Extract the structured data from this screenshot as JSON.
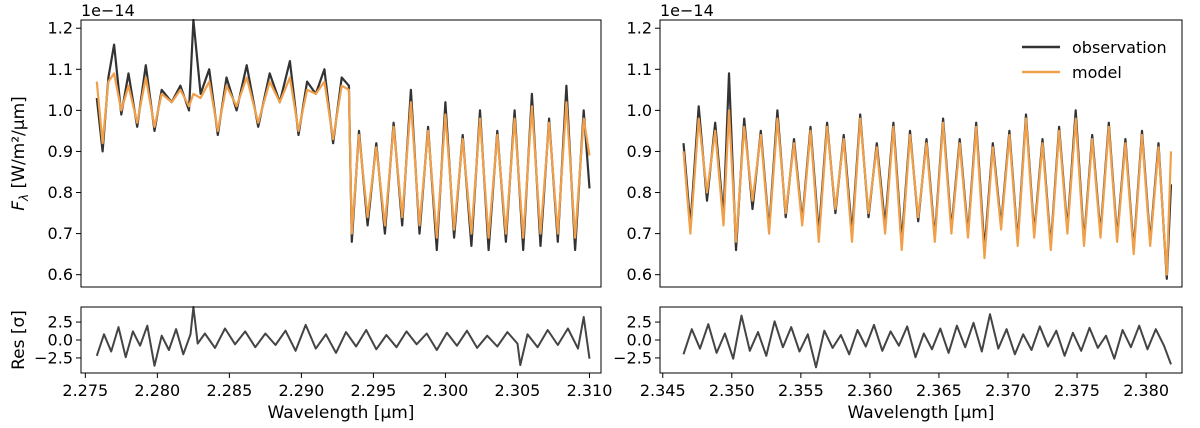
{
  "chart_data": [
    {
      "type": "line",
      "panel": "left-spectrum",
      "offset_text": "1e−14",
      "ylabel_main": "F",
      "ylabel_sub": "λ",
      "ylabel_unit": " [W/m²/μm]",
      "xlim": [
        2.2747,
        2.3108
      ],
      "ylim": [
        0.57,
        1.22
      ],
      "yticks": [
        "0.6",
        "0.7",
        "0.8",
        "0.9",
        "1.0",
        "1.1",
        "1.2"
      ],
      "ytick_values": [
        0.6,
        0.7,
        0.8,
        0.9,
        1.0,
        1.1,
        1.2
      ],
      "series": [
        {
          "role": "observation",
          "color": "#333333",
          "x": [
            2.2758,
            2.2762,
            2.2766,
            2.277,
            2.2775,
            2.278,
            2.2786,
            2.2792,
            2.2798,
            2.2803,
            2.281,
            2.2816,
            2.2822,
            2.2825,
            2.283,
            2.2836,
            2.2842,
            2.2848,
            2.2855,
            2.2862,
            2.287,
            2.2878,
            2.2885,
            2.2892,
            2.2898,
            2.2904,
            2.291,
            2.2916,
            2.2922,
            2.2928,
            2.2933,
            2.2935,
            2.294,
            2.2946,
            2.2952,
            2.2958,
            2.2964,
            2.297,
            2.2976,
            2.2982,
            2.2988,
            2.2994,
            2.3,
            2.3006,
            2.3012,
            2.3018,
            2.3024,
            2.303,
            2.3036,
            2.3042,
            2.3048,
            2.3054,
            2.306,
            2.3066,
            2.3072,
            2.3078,
            2.3084,
            2.309,
            2.3096,
            2.31
          ],
          "y": [
            1.03,
            0.9,
            1.08,
            1.16,
            0.99,
            1.09,
            0.96,
            1.11,
            0.95,
            1.05,
            1.02,
            1.06,
            1.0,
            1.25,
            1.04,
            1.1,
            0.94,
            1.08,
            1.0,
            1.11,
            0.96,
            1.09,
            1.02,
            1.12,
            0.94,
            1.07,
            1.04,
            1.1,
            0.92,
            1.08,
            1.06,
            0.68,
            0.95,
            0.72,
            0.92,
            0.7,
            0.97,
            0.72,
            1.05,
            0.7,
            0.96,
            0.66,
            1.02,
            0.69,
            0.94,
            0.67,
            1.0,
            0.66,
            0.95,
            0.68,
            1.0,
            0.66,
            1.04,
            0.67,
            0.98,
            0.68,
            1.06,
            0.66,
            1.0,
            0.81
          ]
        },
        {
          "role": "model",
          "color": "#f0a04b",
          "x": [
            2.2758,
            2.2762,
            2.2766,
            2.277,
            2.2775,
            2.278,
            2.2786,
            2.2792,
            2.2798,
            2.2803,
            2.281,
            2.2816,
            2.2822,
            2.2825,
            2.283,
            2.2836,
            2.2842,
            2.2848,
            2.2855,
            2.2862,
            2.287,
            2.2878,
            2.2885,
            2.2892,
            2.2898,
            2.2904,
            2.291,
            2.2916,
            2.2922,
            2.2928,
            2.2933,
            2.2935,
            2.294,
            2.2946,
            2.2952,
            2.2958,
            2.2964,
            2.297,
            2.2976,
            2.2982,
            2.2988,
            2.2994,
            2.3,
            2.3006,
            2.3012,
            2.3018,
            2.3024,
            2.303,
            2.3036,
            2.3042,
            2.3048,
            2.3054,
            2.306,
            2.3066,
            2.3072,
            2.3078,
            2.3084,
            2.309,
            2.3096,
            2.31
          ],
          "y": [
            1.07,
            0.92,
            1.07,
            1.09,
            1.0,
            1.06,
            0.97,
            1.08,
            0.96,
            1.04,
            1.02,
            1.05,
            1.01,
            1.04,
            1.03,
            1.07,
            0.95,
            1.06,
            1.01,
            1.08,
            0.97,
            1.07,
            1.02,
            1.08,
            0.95,
            1.05,
            1.04,
            1.07,
            0.93,
            1.06,
            1.05,
            0.7,
            0.94,
            0.74,
            0.91,
            0.72,
            0.96,
            0.74,
            1.02,
            0.72,
            0.95,
            0.69,
            0.99,
            0.71,
            0.93,
            0.7,
            0.98,
            0.69,
            0.94,
            0.7,
            0.98,
            0.69,
            1.01,
            0.7,
            0.97,
            0.7,
            1.02,
            0.69,
            0.98,
            0.89
          ]
        }
      ]
    },
    {
      "type": "line",
      "panel": "left-residual",
      "ylabel": "Res [σ]",
      "xlabel": "Wavelength [μm]",
      "xlim": [
        2.2747,
        2.3108
      ],
      "ylim": [
        -4.6,
        4.6
      ],
      "yticks": [
        "−2.5",
        "0.0",
        "2.5"
      ],
      "ytick_values": [
        -2.5,
        0.0,
        2.5
      ],
      "xticks": [
        "2.275",
        "2.280",
        "2.285",
        "2.290",
        "2.295",
        "2.300",
        "2.305",
        "2.310"
      ],
      "xtick_values": [
        2.275,
        2.28,
        2.285,
        2.29,
        2.295,
        2.3,
        2.305,
        2.31
      ],
      "series": [
        {
          "role": "residual",
          "color": "#444444",
          "x": [
            2.2758,
            2.2763,
            2.2768,
            2.2773,
            2.2778,
            2.2783,
            2.2788,
            2.2793,
            2.2798,
            2.2803,
            2.2808,
            2.2813,
            2.2818,
            2.2823,
            2.2825,
            2.2828,
            2.2833,
            2.284,
            2.2847,
            2.2854,
            2.2861,
            2.2868,
            2.2875,
            2.2882,
            2.2889,
            2.2896,
            2.2903,
            2.291,
            2.2917,
            2.2924,
            2.2931,
            2.2938,
            2.2945,
            2.2952,
            2.2959,
            2.2966,
            2.2973,
            2.298,
            2.2987,
            2.2994,
            2.3001,
            2.3008,
            2.3015,
            2.3022,
            2.3029,
            2.3036,
            2.3043,
            2.305,
            2.3052,
            2.3057,
            2.3064,
            2.3071,
            2.3078,
            2.3085,
            2.3092,
            2.3096,
            2.31
          ],
          "y": [
            -2.2,
            0.8,
            -1.6,
            1.8,
            -2.4,
            1.2,
            -0.8,
            2.0,
            -3.6,
            0.6,
            -1.4,
            1.5,
            -2.0,
            0.8,
            6.5,
            -0.5,
            0.9,
            -1.1,
            1.6,
            -0.6,
            1.2,
            -1.0,
            0.9,
            -0.7,
            1.3,
            -1.5,
            2.1,
            -1.2,
            0.8,
            -1.8,
            1.1,
            -0.9,
            1.4,
            -1.3,
            0.7,
            -1.0,
            1.2,
            -0.6,
            0.9,
            -1.4,
            1.0,
            -0.8,
            1.3,
            -1.1,
            0.6,
            -0.9,
            1.1,
            -0.5,
            -3.5,
            0.8,
            -1.0,
            1.4,
            -0.7,
            1.6,
            -1.2,
            3.2,
            -2.6
          ]
        }
      ]
    },
    {
      "type": "line",
      "panel": "right-spectrum",
      "offset_text": "1e−14",
      "xlim": [
        2.3448,
        2.3826
      ],
      "ylim": [
        0.57,
        1.22
      ],
      "yticks": [
        "0.6",
        "0.7",
        "0.8",
        "0.9",
        "1.0",
        "1.1",
        "1.2"
      ],
      "ytick_values": [
        0.6,
        0.7,
        0.8,
        0.9,
        1.0,
        1.1,
        1.2
      ],
      "legend": {
        "placement": "upper-right",
        "entries": [
          "observation",
          "model"
        ]
      },
      "series": [
        {
          "name": "observation",
          "color": "#333333",
          "x": [
            2.3465,
            2.347,
            2.3476,
            2.3482,
            2.3488,
            2.3494,
            2.3498,
            2.3503,
            2.3509,
            2.3515,
            2.3521,
            2.3527,
            2.3533,
            2.3539,
            2.3545,
            2.3551,
            2.3557,
            2.3563,
            2.3569,
            2.3575,
            2.3581,
            2.3587,
            2.3593,
            2.3599,
            2.3605,
            2.3611,
            2.3617,
            2.3623,
            2.3629,
            2.3635,
            2.3641,
            2.3647,
            2.3653,
            2.3659,
            2.3665,
            2.3671,
            2.3677,
            2.3683,
            2.3689,
            2.3695,
            2.3701,
            2.3707,
            2.3713,
            2.3719,
            2.3725,
            2.3731,
            2.3737,
            2.3743,
            2.3749,
            2.3755,
            2.3761,
            2.3767,
            2.3773,
            2.3779,
            2.3785,
            2.3791,
            2.3797,
            2.3803,
            2.3809,
            2.3815,
            2.3818
          ],
          "y": [
            0.92,
            0.72,
            1.01,
            0.78,
            0.97,
            0.74,
            1.09,
            0.66,
            0.98,
            0.76,
            0.95,
            0.71,
            1.0,
            0.74,
            0.93,
            0.73,
            0.96,
            0.7,
            0.97,
            0.75,
            0.94,
            0.7,
            0.99,
            0.74,
            0.92,
            0.72,
            0.97,
            0.68,
            0.95,
            0.73,
            0.93,
            0.69,
            0.98,
            0.71,
            0.93,
            0.7,
            0.97,
            0.66,
            0.92,
            0.72,
            0.95,
            0.68,
            0.99,
            0.7,
            0.93,
            0.67,
            0.96,
            0.71,
            1.0,
            0.68,
            0.94,
            0.7,
            0.97,
            0.69,
            0.93,
            0.66,
            0.95,
            0.68,
            0.92,
            0.59,
            0.82
          ]
        },
        {
          "name": "model",
          "color": "#f0a04b",
          "x": [
            2.3465,
            2.347,
            2.3476,
            2.3482,
            2.3488,
            2.3494,
            2.3498,
            2.3503,
            2.3509,
            2.3515,
            2.3521,
            2.3527,
            2.3533,
            2.3539,
            2.3545,
            2.3551,
            2.3557,
            2.3563,
            2.3569,
            2.3575,
            2.3581,
            2.3587,
            2.3593,
            2.3599,
            2.3605,
            2.3611,
            2.3617,
            2.3623,
            2.3629,
            2.3635,
            2.3641,
            2.3647,
            2.3653,
            2.3659,
            2.3665,
            2.3671,
            2.3677,
            2.3683,
            2.3689,
            2.3695,
            2.3701,
            2.3707,
            2.3713,
            2.3719,
            2.3725,
            2.3731,
            2.3737,
            2.3743,
            2.3749,
            2.3755,
            2.3761,
            2.3767,
            2.3773,
            2.3779,
            2.3785,
            2.3791,
            2.3797,
            2.3803,
            2.3809,
            2.3815,
            2.3818
          ],
          "y": [
            0.9,
            0.7,
            0.98,
            0.8,
            0.95,
            0.72,
            1.0,
            0.68,
            0.96,
            0.78,
            0.94,
            0.7,
            0.98,
            0.75,
            0.92,
            0.72,
            0.95,
            0.68,
            0.96,
            0.76,
            0.93,
            0.68,
            0.98,
            0.75,
            0.91,
            0.7,
            0.96,
            0.66,
            0.94,
            0.74,
            0.92,
            0.68,
            0.97,
            0.7,
            0.92,
            0.69,
            0.96,
            0.64,
            0.91,
            0.71,
            0.94,
            0.67,
            0.98,
            0.69,
            0.92,
            0.66,
            0.95,
            0.7,
            0.98,
            0.67,
            0.93,
            0.69,
            0.96,
            0.68,
            0.92,
            0.65,
            0.94,
            0.67,
            0.91,
            0.6,
            0.9
          ]
        }
      ]
    },
    {
      "type": "line",
      "panel": "right-residual",
      "xlabel": "Wavelength [μm]",
      "xlim": [
        2.3448,
        2.3826
      ],
      "ylim": [
        -4.6,
        4.6
      ],
      "yticks": [
        "−2.5",
        "0.0",
        "2.5"
      ],
      "ytick_values": [
        -2.5,
        0.0,
        2.5
      ],
      "xticks": [
        "2.345",
        "2.350",
        "2.355",
        "2.360",
        "2.365",
        "2.370",
        "2.375",
        "2.380"
      ],
      "xtick_values": [
        2.345,
        2.35,
        2.355,
        2.36,
        2.365,
        2.37,
        2.375,
        2.38
      ],
      "series": [
        {
          "role": "residual",
          "color": "#444444",
          "x": [
            2.3465,
            2.3471,
            2.3477,
            2.3483,
            2.3489,
            2.3495,
            2.3501,
            2.3507,
            2.3513,
            2.3519,
            2.3525,
            2.3531,
            2.3537,
            2.3543,
            2.3549,
            2.3555,
            2.3561,
            2.3567,
            2.3573,
            2.3579,
            2.3585,
            2.3591,
            2.3597,
            2.3603,
            2.3609,
            2.3615,
            2.3621,
            2.3627,
            2.3633,
            2.3639,
            2.3645,
            2.3651,
            2.3657,
            2.3663,
            2.3669,
            2.3675,
            2.3681,
            2.3687,
            2.3693,
            2.3699,
            2.3705,
            2.3711,
            2.3717,
            2.3723,
            2.3729,
            2.3735,
            2.3741,
            2.3747,
            2.3753,
            2.3759,
            2.3765,
            2.3771,
            2.3777,
            2.3783,
            2.3789,
            2.3795,
            2.3801,
            2.3807,
            2.3813,
            2.3818
          ],
          "y": [
            -2.0,
            1.5,
            -1.2,
            2.2,
            -1.8,
            0.9,
            -2.6,
            3.4,
            -1.5,
            1.1,
            -2.2,
            2.6,
            -1.0,
            1.8,
            -1.6,
            0.8,
            -3.8,
            1.3,
            -1.1,
            0.7,
            -2.0,
            1.4,
            -0.9,
            2.1,
            -1.5,
            1.2,
            -0.8,
            1.9,
            -2.4,
            0.9,
            -1.3,
            1.6,
            -1.8,
            2.0,
            -1.0,
            2.4,
            -1.6,
            3.6,
            -1.2,
            1.5,
            -2.0,
            0.8,
            -1.4,
            1.9,
            -0.9,
            1.3,
            -2.2,
            1.0,
            -1.5,
            1.7,
            -1.1,
            0.6,
            -2.6,
            1.4,
            -1.0,
            2.0,
            -1.3,
            1.5,
            -0.8,
            -3.4
          ]
        }
      ]
    }
  ],
  "legend": {
    "observation_label": "observation",
    "model_label": "model"
  }
}
